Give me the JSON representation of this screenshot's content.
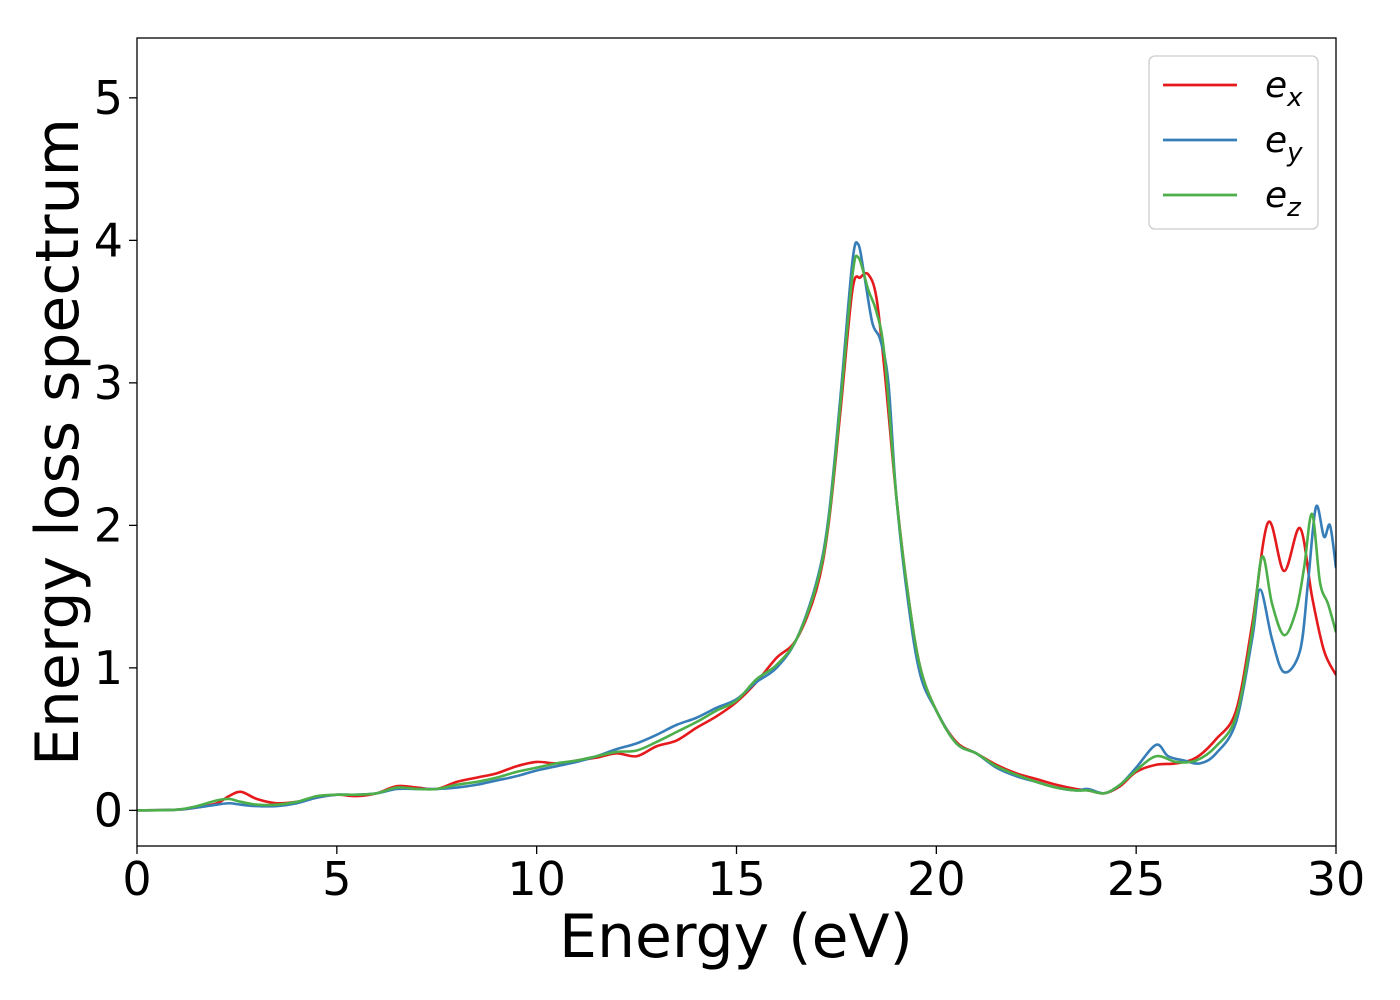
{
  "chart_data": {
    "type": "line",
    "title": "",
    "xlabel": "Energy (eV)",
    "ylabel": "Energy loss spectrum",
    "xlim": [
      0,
      30
    ],
    "ylim": [
      -0.25,
      5.42
    ],
    "xticks": [
      0,
      5,
      10,
      15,
      20,
      25,
      30
    ],
    "yticks": [
      0,
      1,
      2,
      3,
      4,
      5
    ],
    "grid": false,
    "legend_position": "top-right",
    "series": [
      {
        "name": "e",
        "subscript": "x",
        "color": "#e41a1c",
        "points": [
          [
            0,
            0.0
          ],
          [
            1.0,
            0.005
          ],
          [
            1.5,
            0.02
          ],
          [
            2.0,
            0.05
          ],
          [
            2.3,
            0.1
          ],
          [
            2.6,
            0.13
          ],
          [
            3.0,
            0.08
          ],
          [
            3.5,
            0.05
          ],
          [
            4.0,
            0.06
          ],
          [
            4.5,
            0.09
          ],
          [
            5.0,
            0.11
          ],
          [
            5.5,
            0.1
          ],
          [
            6.0,
            0.12
          ],
          [
            6.5,
            0.17
          ],
          [
            7.0,
            0.16
          ],
          [
            7.5,
            0.15
          ],
          [
            8.0,
            0.2
          ],
          [
            8.5,
            0.23
          ],
          [
            9.0,
            0.26
          ],
          [
            9.5,
            0.31
          ],
          [
            10.0,
            0.34
          ],
          [
            10.5,
            0.33
          ],
          [
            11.0,
            0.35
          ],
          [
            11.5,
            0.37
          ],
          [
            12.0,
            0.4
          ],
          [
            12.5,
            0.38
          ],
          [
            13.0,
            0.45
          ],
          [
            13.5,
            0.49
          ],
          [
            14.0,
            0.58
          ],
          [
            14.5,
            0.66
          ],
          [
            15.0,
            0.76
          ],
          [
            15.5,
            0.9
          ],
          [
            16.0,
            1.07
          ],
          [
            16.5,
            1.2
          ],
          [
            17.0,
            1.55
          ],
          [
            17.3,
            2.0
          ],
          [
            17.6,
            2.8
          ],
          [
            17.9,
            3.65
          ],
          [
            18.1,
            3.74
          ],
          [
            18.3,
            3.76
          ],
          [
            18.5,
            3.6
          ],
          [
            18.7,
            3.1
          ],
          [
            19.0,
            2.2
          ],
          [
            19.3,
            1.5
          ],
          [
            19.6,
            1.0
          ],
          [
            20.0,
            0.7
          ],
          [
            20.5,
            0.48
          ],
          [
            21.0,
            0.4
          ],
          [
            21.5,
            0.32
          ],
          [
            22.0,
            0.26
          ],
          [
            22.5,
            0.22
          ],
          [
            23.0,
            0.18
          ],
          [
            23.5,
            0.15
          ],
          [
            23.8,
            0.14
          ],
          [
            24.2,
            0.12
          ],
          [
            24.6,
            0.17
          ],
          [
            25.0,
            0.27
          ],
          [
            25.5,
            0.32
          ],
          [
            26.0,
            0.33
          ],
          [
            26.5,
            0.37
          ],
          [
            27.0,
            0.5
          ],
          [
            27.5,
            0.7
          ],
          [
            27.9,
            1.3
          ],
          [
            28.3,
            2.02
          ],
          [
            28.7,
            1.68
          ],
          [
            29.1,
            1.98
          ],
          [
            29.4,
            1.5
          ],
          [
            29.7,
            1.12
          ],
          [
            30.0,
            0.95
          ]
        ]
      },
      {
        "name": "e",
        "subscript": "y",
        "color": "#377eb8",
        "points": [
          [
            0,
            0.0
          ],
          [
            1.0,
            0.005
          ],
          [
            1.5,
            0.02
          ],
          [
            2.0,
            0.04
          ],
          [
            2.3,
            0.05
          ],
          [
            2.6,
            0.04
          ],
          [
            3.0,
            0.03
          ],
          [
            3.5,
            0.03
          ],
          [
            4.0,
            0.05
          ],
          [
            4.5,
            0.09
          ],
          [
            5.0,
            0.11
          ],
          [
            5.5,
            0.11
          ],
          [
            6.0,
            0.12
          ],
          [
            6.5,
            0.15
          ],
          [
            7.0,
            0.15
          ],
          [
            7.5,
            0.15
          ],
          [
            8.0,
            0.16
          ],
          [
            8.5,
            0.18
          ],
          [
            9.0,
            0.21
          ],
          [
            9.5,
            0.24
          ],
          [
            10.0,
            0.28
          ],
          [
            10.5,
            0.31
          ],
          [
            11.0,
            0.34
          ],
          [
            11.5,
            0.38
          ],
          [
            12.0,
            0.43
          ],
          [
            12.5,
            0.47
          ],
          [
            13.0,
            0.53
          ],
          [
            13.5,
            0.6
          ],
          [
            14.0,
            0.65
          ],
          [
            14.5,
            0.72
          ],
          [
            15.0,
            0.78
          ],
          [
            15.5,
            0.9
          ],
          [
            16.0,
            1.0
          ],
          [
            16.5,
            1.2
          ],
          [
            17.0,
            1.6
          ],
          [
            17.3,
            2.05
          ],
          [
            17.6,
            2.9
          ],
          [
            17.9,
            3.85
          ],
          [
            18.05,
            3.97
          ],
          [
            18.2,
            3.75
          ],
          [
            18.4,
            3.42
          ],
          [
            18.6,
            3.3
          ],
          [
            18.8,
            3.0
          ],
          [
            19.0,
            2.2
          ],
          [
            19.3,
            1.45
          ],
          [
            19.6,
            0.95
          ],
          [
            20.0,
            0.7
          ],
          [
            20.5,
            0.47
          ],
          [
            21.0,
            0.4
          ],
          [
            21.5,
            0.3
          ],
          [
            22.0,
            0.24
          ],
          [
            22.5,
            0.2
          ],
          [
            23.0,
            0.16
          ],
          [
            23.5,
            0.14
          ],
          [
            23.8,
            0.15
          ],
          [
            24.2,
            0.12
          ],
          [
            24.6,
            0.18
          ],
          [
            25.0,
            0.3
          ],
          [
            25.5,
            0.46
          ],
          [
            25.8,
            0.38
          ],
          [
            26.2,
            0.35
          ],
          [
            26.6,
            0.33
          ],
          [
            27.0,
            0.4
          ],
          [
            27.5,
            0.62
          ],
          [
            27.9,
            1.2
          ],
          [
            28.1,
            1.55
          ],
          [
            28.4,
            1.2
          ],
          [
            28.7,
            0.97
          ],
          [
            29.1,
            1.12
          ],
          [
            29.3,
            1.6
          ],
          [
            29.5,
            2.13
          ],
          [
            29.7,
            1.92
          ],
          [
            29.85,
            2.0
          ],
          [
            30.0,
            1.7
          ]
        ]
      },
      {
        "name": "e",
        "subscript": "z",
        "color": "#4daf4a",
        "points": [
          [
            0,
            0.0
          ],
          [
            1.0,
            0.005
          ],
          [
            1.5,
            0.03
          ],
          [
            2.0,
            0.07
          ],
          [
            2.3,
            0.08
          ],
          [
            2.6,
            0.06
          ],
          [
            3.0,
            0.04
          ],
          [
            3.5,
            0.04
          ],
          [
            4.0,
            0.06
          ],
          [
            4.5,
            0.1
          ],
          [
            5.0,
            0.11
          ],
          [
            5.5,
            0.11
          ],
          [
            6.0,
            0.12
          ],
          [
            6.5,
            0.16
          ],
          [
            7.0,
            0.15
          ],
          [
            7.5,
            0.15
          ],
          [
            8.0,
            0.18
          ],
          [
            8.5,
            0.2
          ],
          [
            9.0,
            0.23
          ],
          [
            9.5,
            0.27
          ],
          [
            10.0,
            0.3
          ],
          [
            10.5,
            0.33
          ],
          [
            11.0,
            0.35
          ],
          [
            11.5,
            0.38
          ],
          [
            12.0,
            0.41
          ],
          [
            12.5,
            0.42
          ],
          [
            13.0,
            0.48
          ],
          [
            13.5,
            0.55
          ],
          [
            14.0,
            0.62
          ],
          [
            14.5,
            0.7
          ],
          [
            15.0,
            0.77
          ],
          [
            15.5,
            0.92
          ],
          [
            16.0,
            1.02
          ],
          [
            16.5,
            1.2
          ],
          [
            17.0,
            1.58
          ],
          [
            17.3,
            2.02
          ],
          [
            17.6,
            2.85
          ],
          [
            17.9,
            3.75
          ],
          [
            18.05,
            3.88
          ],
          [
            18.3,
            3.65
          ],
          [
            18.5,
            3.5
          ],
          [
            18.7,
            3.2
          ],
          [
            19.0,
            2.2
          ],
          [
            19.3,
            1.5
          ],
          [
            19.6,
            1.0
          ],
          [
            20.0,
            0.7
          ],
          [
            20.5,
            0.47
          ],
          [
            21.0,
            0.4
          ],
          [
            21.5,
            0.31
          ],
          [
            22.0,
            0.25
          ],
          [
            22.5,
            0.2
          ],
          [
            23.0,
            0.16
          ],
          [
            23.5,
            0.14
          ],
          [
            23.8,
            0.14
          ],
          [
            24.2,
            0.12
          ],
          [
            24.6,
            0.18
          ],
          [
            25.0,
            0.28
          ],
          [
            25.5,
            0.38
          ],
          [
            26.0,
            0.34
          ],
          [
            26.5,
            0.35
          ],
          [
            27.0,
            0.45
          ],
          [
            27.5,
            0.66
          ],
          [
            27.9,
            1.25
          ],
          [
            28.15,
            1.78
          ],
          [
            28.4,
            1.45
          ],
          [
            28.7,
            1.23
          ],
          [
            29.0,
            1.4
          ],
          [
            29.2,
            1.7
          ],
          [
            29.4,
            2.08
          ],
          [
            29.6,
            1.6
          ],
          [
            29.8,
            1.45
          ],
          [
            30.0,
            1.25
          ]
        ]
      }
    ]
  }
}
